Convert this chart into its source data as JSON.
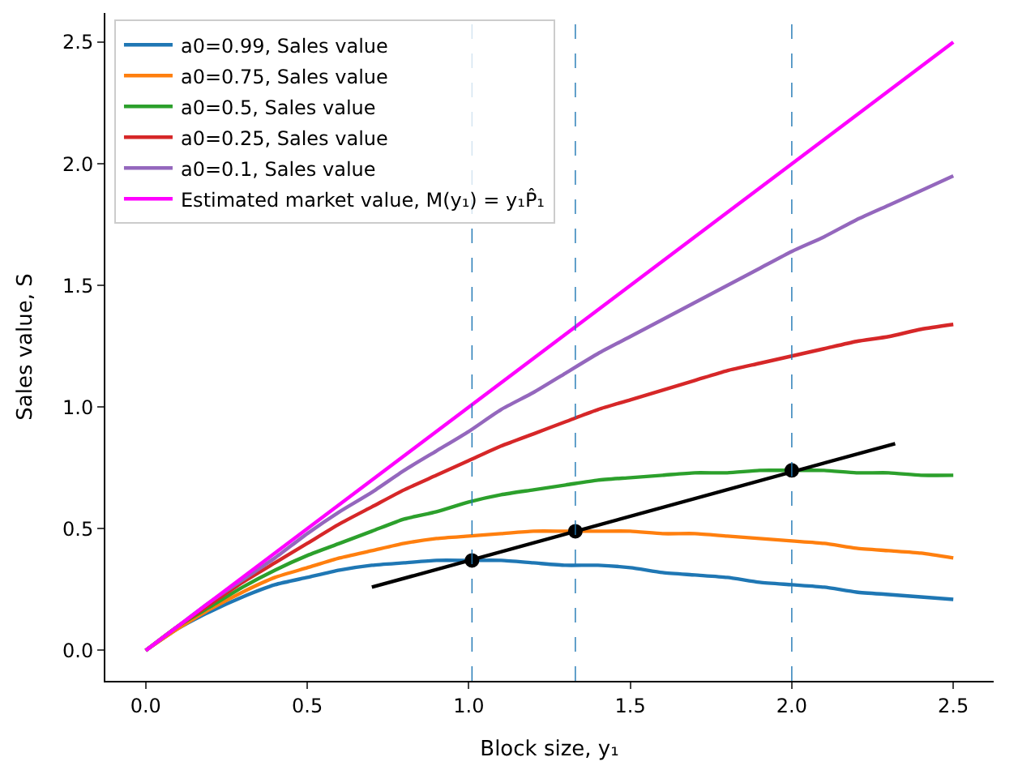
{
  "chart_data": {
    "type": "line",
    "xlabel": "Block size, y₁",
    "ylabel": "Sales value, S",
    "x": [
      0,
      0.1,
      0.2,
      0.3,
      0.4,
      0.5,
      0.6,
      0.7,
      0.8,
      0.9,
      1.0,
      1.1,
      1.2,
      1.3,
      1.4,
      1.5,
      1.6,
      1.7,
      1.8,
      1.9,
      2.0,
      2.1,
      2.2,
      2.3,
      2.4,
      2.5
    ],
    "series": [
      {
        "name": "a0=0.99, Sales value",
        "color": "#1f77b4",
        "values": [
          0,
          0.09,
          0.16,
          0.22,
          0.27,
          0.3,
          0.33,
          0.35,
          0.36,
          0.37,
          0.37,
          0.37,
          0.36,
          0.35,
          0.35,
          0.34,
          0.32,
          0.31,
          0.3,
          0.28,
          0.27,
          0.26,
          0.24,
          0.23,
          0.22,
          0.21
        ]
      },
      {
        "name": "a0=0.75, Sales value",
        "color": "#ff7f0e",
        "values": [
          0,
          0.09,
          0.17,
          0.24,
          0.3,
          0.34,
          0.38,
          0.41,
          0.44,
          0.46,
          0.47,
          0.48,
          0.49,
          0.49,
          0.49,
          0.49,
          0.48,
          0.48,
          0.47,
          0.46,
          0.45,
          0.44,
          0.42,
          0.41,
          0.4,
          0.38
        ]
      },
      {
        "name": "a0=0.5, Sales value",
        "color": "#2ca02c",
        "values": [
          0,
          0.1,
          0.18,
          0.26,
          0.33,
          0.39,
          0.44,
          0.49,
          0.54,
          0.57,
          0.61,
          0.64,
          0.66,
          0.68,
          0.7,
          0.71,
          0.72,
          0.73,
          0.73,
          0.74,
          0.74,
          0.74,
          0.73,
          0.73,
          0.72,
          0.72
        ]
      },
      {
        "name": "a0=0.25, Sales value",
        "color": "#d62728",
        "values": [
          0,
          0.1,
          0.19,
          0.28,
          0.36,
          0.44,
          0.52,
          0.59,
          0.66,
          0.72,
          0.78,
          0.84,
          0.89,
          0.94,
          0.99,
          1.03,
          1.07,
          1.11,
          1.15,
          1.18,
          1.21,
          1.24,
          1.27,
          1.29,
          1.32,
          1.34
        ]
      },
      {
        "name": "a0=0.1, Sales value",
        "color": "#9467bd",
        "values": [
          0,
          0.1,
          0.2,
          0.29,
          0.38,
          0.48,
          0.57,
          0.65,
          0.74,
          0.82,
          0.9,
          0.99,
          1.06,
          1.14,
          1.22,
          1.29,
          1.36,
          1.43,
          1.5,
          1.57,
          1.64,
          1.7,
          1.77,
          1.83,
          1.89,
          1.95
        ]
      },
      {
        "name": "Estimated market value, M(y₁) = y₁P̂₁",
        "color": "#ff00ff",
        "x": [
          0,
          2.5
        ],
        "values": [
          0,
          2.5
        ]
      },
      {
        "color": "#000000",
        "x": [
          0.7,
          2.32
        ],
        "values": [
          0.26,
          0.85
        ]
      },
      {
        "type": "scatter",
        "marker": "circle",
        "color": "#000000",
        "x": [
          1.01,
          1.33,
          2.0
        ],
        "values": [
          0.37,
          0.49,
          0.74
        ]
      }
    ],
    "ref_lines": [
      {
        "axis": "x",
        "value": 1.01,
        "color": "#1f77b4",
        "line_style": "dashed"
      },
      {
        "axis": "x",
        "value": 1.33,
        "color": "#1f77b4",
        "line_style": "dashed"
      },
      {
        "axis": "x",
        "value": 2.0,
        "color": "#1f77b4",
        "line_style": "dashed"
      }
    ],
    "xlim": [
      -0.125,
      2.625
    ],
    "ylim": [
      -0.125,
      2.62
    ],
    "xticks": [
      {
        "value": 0,
        "label": "0.0"
      },
      0.5,
      {
        "value": 1,
        "label": "1.0"
      },
      1.5,
      {
        "value": 2,
        "label": "2.0"
      },
      2.5
    ],
    "yticks": [
      {
        "value": 0,
        "label": "0.0"
      },
      0.5,
      {
        "value": 1,
        "label": "1.0"
      },
      1.5,
      {
        "value": 2,
        "label": "2.0"
      },
      2.5
    ],
    "legend": "top left"
  }
}
